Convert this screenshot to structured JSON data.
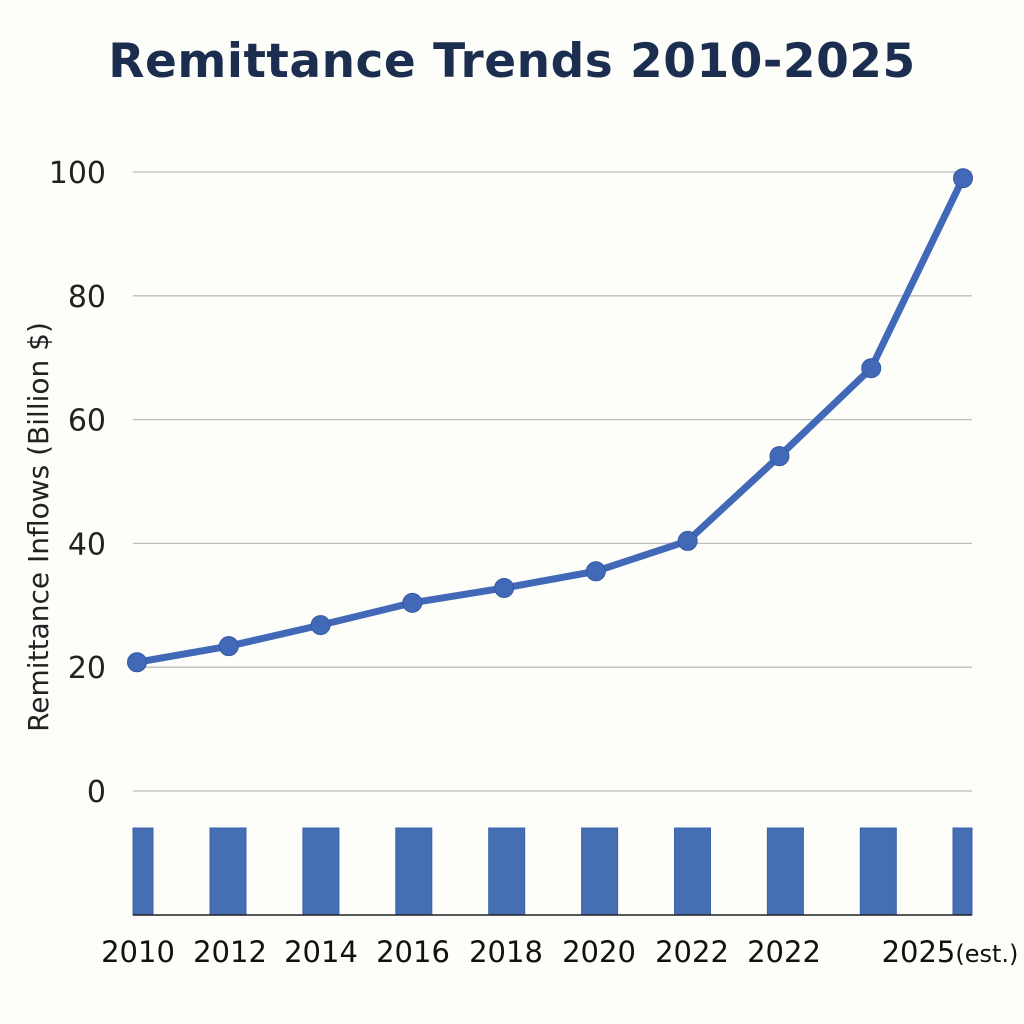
{
  "chart_data": {
    "type": "line",
    "title": "Remittance Trends 2010-2025",
    "xlabel": "",
    "ylabel": "Remittance Inflows (Billion $)",
    "ylim": [
      0,
      100
    ],
    "yticks": [
      0,
      20,
      40,
      60,
      80,
      100
    ],
    "grid": true,
    "legend": "none",
    "categories": [
      "2010",
      "2012",
      "2014",
      "2016",
      "2018",
      "2020",
      "2022",
      "2022",
      "",
      "2025(est.)"
    ],
    "series": [
      {
        "name": "Remittance Inflows",
        "color": "#4169b8",
        "values": [
          20.8,
          23.4,
          26.8,
          30.4,
          32.8,
          35.5,
          40.4,
          54.1,
          68.3,
          99.0
        ]
      }
    ],
    "bar_strip": {
      "color": "#456eb3",
      "count": 10,
      "note": "uniform decorative bars below the line plot, all equal height"
    }
  }
}
